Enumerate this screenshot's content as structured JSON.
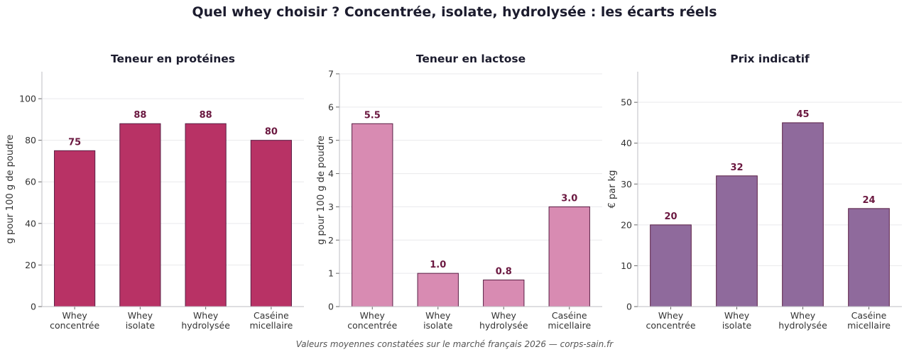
{
  "figure": {
    "title": "Quel whey choisir ? Concentrée, isolate, hydrolysée : les écarts réels",
    "footnote": "Valeurs moyennes constatées sur le marché français 2026 — corps-sain.fr"
  },
  "chart_data": [
    {
      "type": "bar",
      "title": "Teneur en protéines",
      "categories": [
        [
          "Whey",
          "concentrée"
        ],
        [
          "Whey",
          "isolate"
        ],
        [
          "Whey",
          "hydrolysée"
        ],
        [
          "Caséine",
          "micellaire"
        ]
      ],
      "values": [
        75,
        88,
        88,
        80
      ],
      "value_labels": [
        "75",
        "88",
        "88",
        "80"
      ],
      "ylabel": "g pour 100 g de poudre",
      "ylim": [
        0,
        113
      ],
      "yticks": [
        0,
        20,
        40,
        60,
        80,
        100
      ],
      "grid": true,
      "bar_color": "#b83265",
      "label_color": "#6b1840"
    },
    {
      "type": "bar",
      "title": "Teneur en lactose",
      "categories": [
        [
          "Whey",
          "concentrée"
        ],
        [
          "Whey",
          "isolate"
        ],
        [
          "Whey",
          "hydrolysée"
        ],
        [
          "Caséine",
          "micellaire"
        ]
      ],
      "values": [
        5.5,
        1.0,
        0.8,
        3.0
      ],
      "value_labels": [
        "5.5",
        "1.0",
        "0.8",
        "3.0"
      ],
      "ylabel": "g pour 100 g de poudre",
      "ylim": [
        0,
        7
      ],
      "yticks": [
        0,
        1,
        2,
        3,
        4,
        5,
        6,
        7
      ],
      "grid": true,
      "bar_color": "#d88bb2",
      "label_color": "#6b1840"
    },
    {
      "type": "bar",
      "title": "Prix indicatif",
      "categories": [
        [
          "Whey",
          "concentrée"
        ],
        [
          "Whey",
          "isolate"
        ],
        [
          "Whey",
          "hydrolysée"
        ],
        [
          "Caséine",
          "micellaire"
        ]
      ],
      "values": [
        20,
        32,
        45,
        24
      ],
      "value_labels": [
        "20",
        "32",
        "45",
        "24"
      ],
      "ylabel": "€ par kg",
      "ylim": [
        0,
        57.5
      ],
      "yticks": [
        0,
        10,
        20,
        30,
        40,
        50
      ],
      "grid": true,
      "bar_color": "#8f6a9c",
      "label_color": "#6b1840"
    }
  ]
}
